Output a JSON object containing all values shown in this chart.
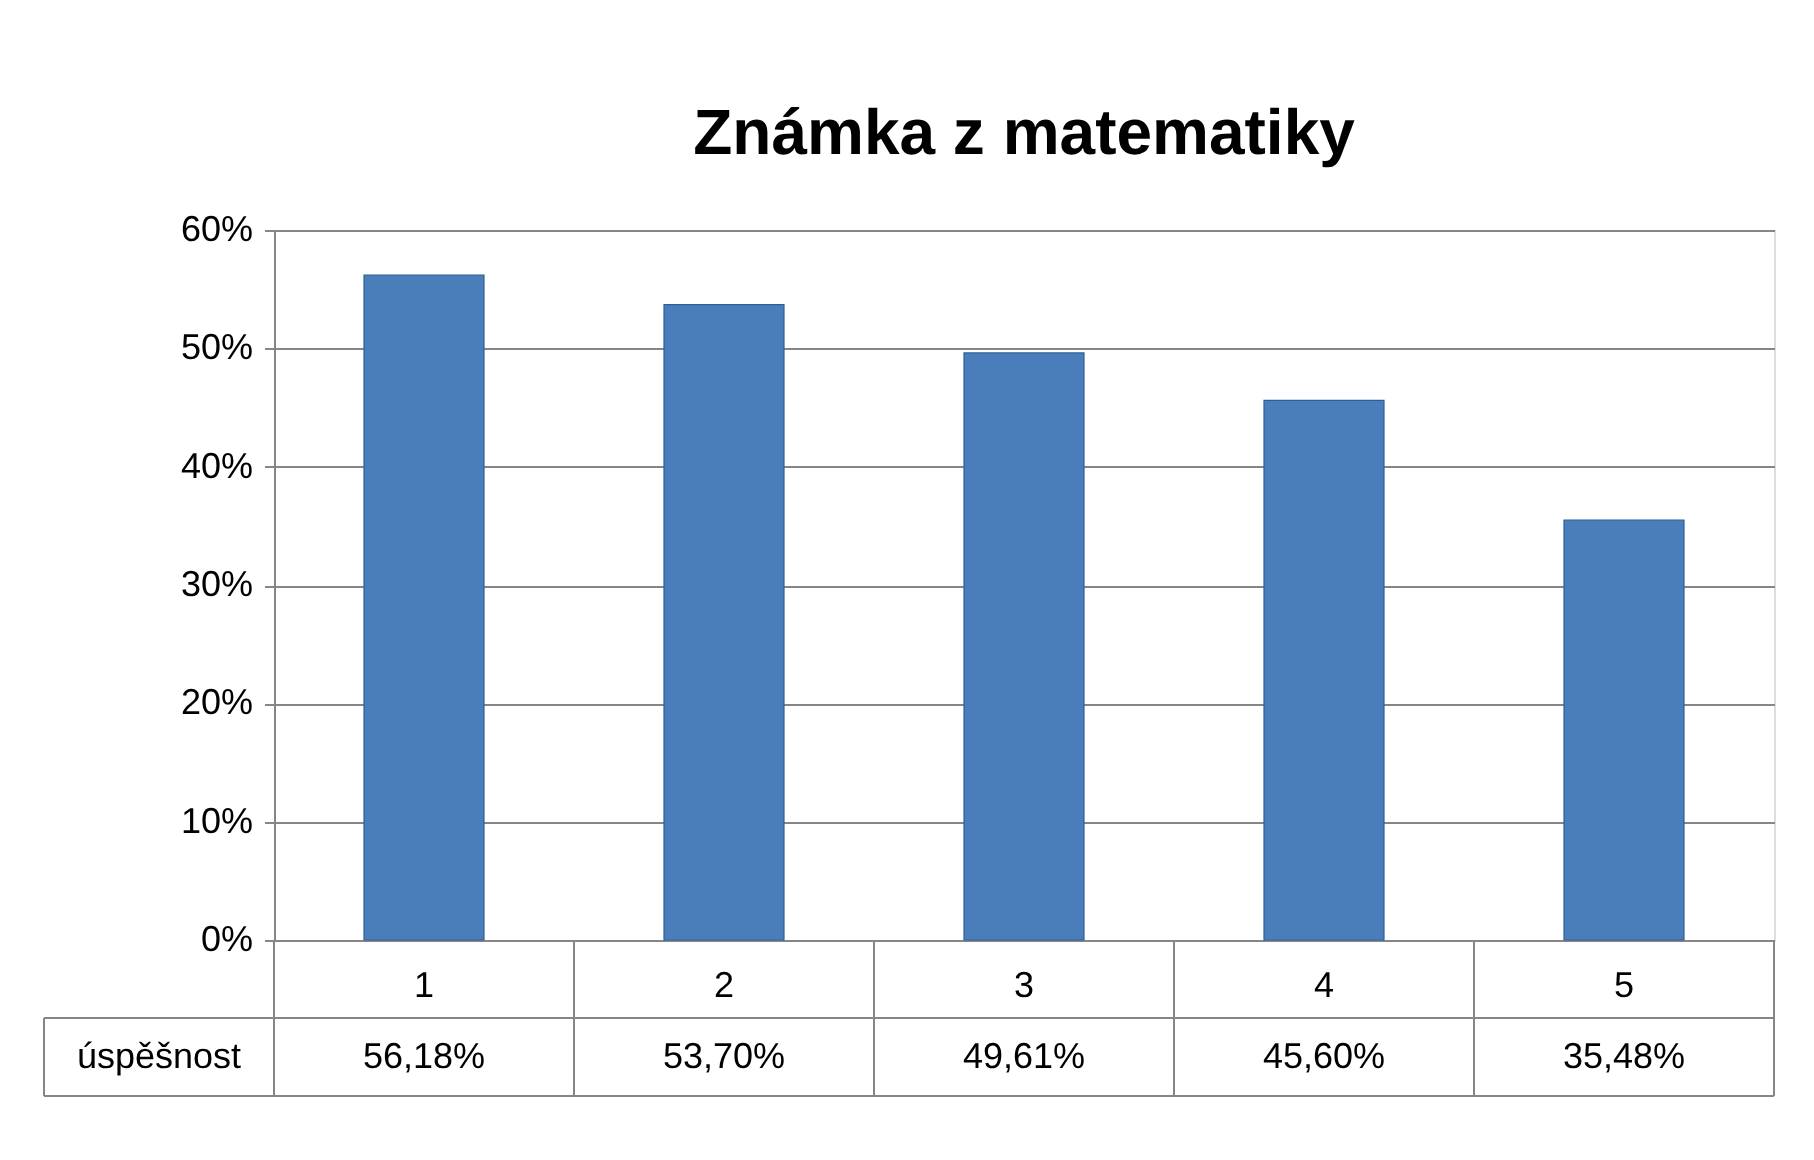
{
  "chart_data": {
    "type": "bar",
    "title": "Známka z matematiky",
    "categories": [
      "1",
      "2",
      "3",
      "4",
      "5"
    ],
    "series": [
      {
        "name": "úspěšnost",
        "color": "#4a7ebb",
        "values": [
          56.18,
          53.7,
          49.61,
          45.6,
          35.48
        ],
        "value_labels": [
          "56,18%",
          "53,70%",
          "49,61%",
          "45,60%",
          "35,48%"
        ]
      }
    ],
    "ylim": [
      0,
      60
    ],
    "yticks": [
      {
        "value": 0,
        "label": "0%"
      },
      {
        "value": 10,
        "label": "10%"
      },
      {
        "value": 20,
        "label": "20%"
      },
      {
        "value": 30,
        "label": "30%"
      },
      {
        "value": 40,
        "label": "40%"
      },
      {
        "value": 50,
        "label": "50%"
      },
      {
        "value": 60,
        "label": "60%"
      }
    ],
    "grid": "y"
  }
}
